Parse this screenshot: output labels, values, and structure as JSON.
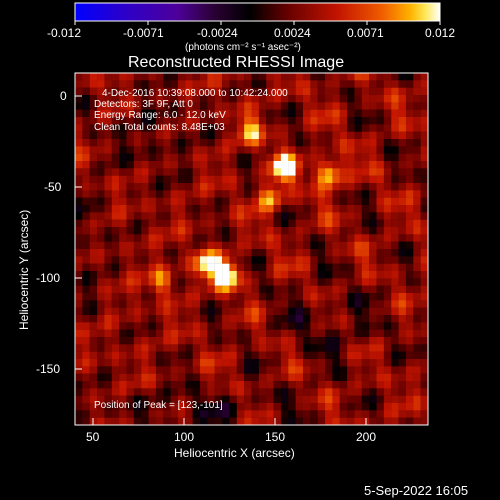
{
  "app": {
    "timestamp": "5-Sep-2022 16:05"
  },
  "colorbar": {
    "ticks": [
      "-0.012",
      "-0.0071",
      "-0.0024",
      "0.0024",
      "0.0071",
      "0.012"
    ],
    "unit_label": "(photons cm⁻² s⁻¹ asec⁻²)",
    "range": [
      -0.012,
      0.012
    ]
  },
  "chart_data": {
    "type": "heatmap",
    "title": "Reconstructed RHESSI Image",
    "xlabel": "Heliocentric X (arcsec)",
    "ylabel": "Heliocentric Y (arcsec)",
    "xlim": [
      40,
      233
    ],
    "ylim": [
      -180,
      6
    ],
    "xticks": [
      50,
      100,
      150,
      200
    ],
    "yticks": [
      0,
      -50,
      -100,
      -150
    ],
    "grid": false,
    "colormap": "hot/blue diverging",
    "nx": 48,
    "ny": 48,
    "peak_position": [
      123,
      -101
    ],
    "sources": [
      {
        "x": 123,
        "y": -101,
        "value": 0.012
      },
      {
        "x": 112,
        "y": -95,
        "value": 0.0085
      },
      {
        "x": 154,
        "y": -44,
        "value": 0.0098
      },
      {
        "x": 179,
        "y": -47,
        "value": 0.0105
      },
      {
        "x": 147,
        "y": -60,
        "value": 0.0068
      },
      {
        "x": 136,
        "y": -25,
        "value": 0.0061
      },
      {
        "x": 88,
        "y": -104,
        "value": 0.0062
      }
    ],
    "info": {
      "time_range": "4-Dec-2016 10:39:08.000 to 10:42:24.000",
      "detectors": "Detectors: 3F 9F, Att 0",
      "energy_range": "Energy Range: 6.0 - 12.0 keV",
      "clean_line": "Clean    Total counts: 8.48E+03",
      "peak_text": "Position of Peak = [123,-101]"
    }
  }
}
